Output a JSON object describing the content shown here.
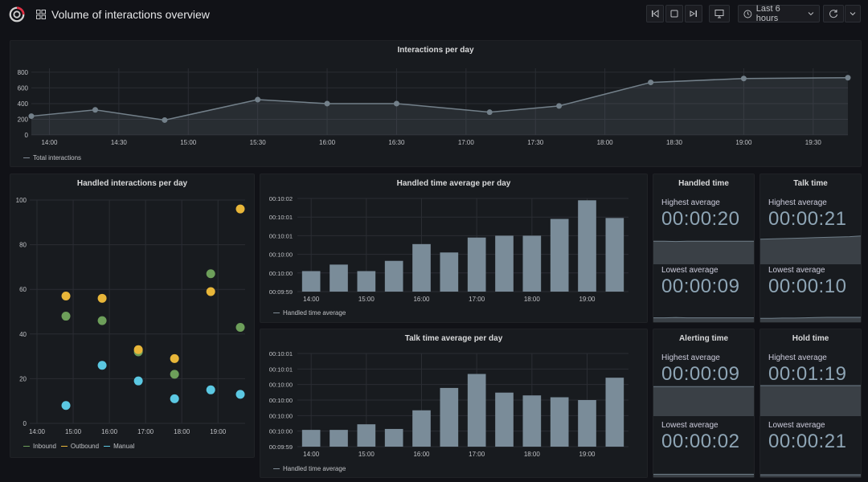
{
  "header": {
    "title": "Volume of interactions overview",
    "time_range": "Last 6 hours"
  },
  "colors": {
    "line": "#73808a",
    "bars": "#7a8c99",
    "inbound": "#6d9f5a",
    "outbound": "#e8b639",
    "manual": "#5bc8e2",
    "stat_value": "#8ea5b5"
  },
  "panels": {
    "interactions_per_day": {
      "title": "Interactions per day",
      "legend": "Total interactions"
    },
    "handled_interactions": {
      "title": "Handled interactions per day",
      "legend": [
        "Inbound",
        "Outbound",
        "Manual"
      ]
    },
    "handled_time_avg": {
      "title": "Handled time average per day",
      "legend": "Handled time average"
    },
    "talk_time_avg": {
      "title": "Talk time average per day",
      "legend": "Handled time average"
    },
    "handled_time": {
      "title": "Handled time",
      "highest_label": "Highest average",
      "highest_value": "00:00:20",
      "lowest_label": "Lowest average",
      "lowest_value": "00:00:09"
    },
    "talk_time": {
      "title": "Talk time",
      "highest_label": "Highest average",
      "highest_value": "00:00:21",
      "lowest_label": "Lowest average",
      "lowest_value": "00:00:10"
    },
    "alerting_time": {
      "title": "Alerting time",
      "highest_label": "Highest average",
      "highest_value": "00:00:09",
      "lowest_label": "Lowest average",
      "lowest_value": "00:00:02"
    },
    "hold_time": {
      "title": "Hold time",
      "highest_label": "Highest average",
      "highest_value": "00:01:19",
      "lowest_label": "Lowest average",
      "lowest_value": "00:00:21"
    }
  },
  "chart_data": [
    {
      "id": "interactions",
      "type": "line",
      "title": "Interactions per day",
      "x_ticks": [
        "14:00",
        "14:30",
        "15:00",
        "15:30",
        "16:00",
        "16:30",
        "17:00",
        "17:30",
        "18:00",
        "18:30",
        "19:00",
        "19:30"
      ],
      "x_range": [
        13.87,
        19.75
      ],
      "x": [
        13.87,
        14.33,
        14.83,
        15.5,
        16.0,
        16.5,
        17.17,
        17.67,
        18.33,
        19.0,
        19.75
      ],
      "y_ticks": [
        "0",
        "200",
        "400",
        "600",
        "800"
      ],
      "ylim": [
        0,
        850
      ],
      "series": [
        {
          "name": "Total interactions",
          "values": [
            240,
            320,
            190,
            450,
            400,
            400,
            290,
            370,
            670,
            720,
            730
          ]
        }
      ]
    },
    {
      "id": "handled_scatter",
      "type": "scatter",
      "title": "Handled interactions per day",
      "x_ticks": [
        "14:00",
        "15:00",
        "16:00",
        "17:00",
        "18:00",
        "19:00"
      ],
      "xlim": [
        13.8,
        19.75
      ],
      "y_ticks": [
        "0",
        "20",
        "40",
        "60",
        "80",
        "100"
      ],
      "ylim": [
        0,
        100
      ],
      "series": [
        {
          "name": "Inbound",
          "x": [
            14.8,
            15.8,
            16.8,
            17.8,
            18.8,
            19.75
          ],
          "values": [
            48,
            46,
            32,
            22,
            67,
            43
          ]
        },
        {
          "name": "Outbound",
          "x": [
            14.8,
            15.8,
            16.8,
            17.8,
            18.8,
            19.75
          ],
          "values": [
            57,
            56,
            33,
            29,
            59,
            96
          ]
        },
        {
          "name": "Manual",
          "x": [
            14.8,
            15.8,
            16.8,
            17.8,
            18.8,
            19.75
          ],
          "values": [
            8,
            26,
            19,
            11,
            15,
            13
          ]
        }
      ]
    },
    {
      "id": "handled_bars",
      "type": "bar",
      "title": "Handled time average per day",
      "x_ticks": [
        "14:00",
        "15:00",
        "16:00",
        "17:00",
        "18:00",
        "19:00"
      ],
      "y_ticks": [
        "00:10:02",
        "00:10:01",
        "00:10:01",
        "00:10:00",
        "00:10:00",
        "00:09:59"
      ],
      "ylim": [
        0,
        100
      ],
      "values": [
        22,
        29,
        22,
        33,
        51,
        42,
        58,
        60,
        60,
        78,
        98,
        79
      ]
    },
    {
      "id": "talk_bars",
      "type": "bar",
      "title": "Talk time average per day",
      "x_ticks": [
        "14:00",
        "15:00",
        "16:00",
        "17:00",
        "18:00",
        "19:00"
      ],
      "y_ticks": [
        "00:10:01",
        "00:10:01",
        "00:10:00",
        "00:10:00",
        "00:10:00",
        "00:10:00",
        "00:09:59"
      ],
      "ylim": [
        0,
        100
      ],
      "values": [
        18,
        18,
        24,
        19,
        39,
        63,
        78,
        58,
        55,
        53,
        50,
        74
      ]
    },
    {
      "id": "spark_handled_high",
      "type": "area",
      "values": [
        0.72,
        0.72,
        0.71,
        0.72,
        0.72,
        0.72,
        0.72,
        0.72,
        0.72,
        0.72
      ]
    },
    {
      "id": "spark_handled_low",
      "type": "area",
      "values": [
        0.18,
        0.18,
        0.19,
        0.18,
        0.18,
        0.18,
        0.18,
        0.18,
        0.18,
        0.18
      ]
    },
    {
      "id": "spark_talk_high",
      "type": "area",
      "values": [
        0.78,
        0.79,
        0.8,
        0.81,
        0.82,
        0.83,
        0.84,
        0.85,
        0.86,
        0.88
      ]
    },
    {
      "id": "spark_talk_low",
      "type": "area",
      "values": [
        0.16,
        0.16,
        0.17,
        0.17,
        0.18,
        0.19,
        0.2,
        0.2,
        0.2,
        0.2
      ]
    },
    {
      "id": "spark_alert_high",
      "type": "area",
      "values": [
        0.92,
        0.92,
        0.92,
        0.92,
        0.92,
        0.92,
        0.92,
        0.92,
        0.92,
        0.92
      ]
    },
    {
      "id": "spark_alert_low",
      "type": "area",
      "values": [
        0.12,
        0.12,
        0.12,
        0.12,
        0.12,
        0.12,
        0.12,
        0.12,
        0.12,
        0.12
      ]
    },
    {
      "id": "spark_hold_high",
      "type": "area",
      "values": [
        0.95,
        0.95,
        0.95,
        0.95,
        0.95,
        0.95,
        0.95,
        0.95,
        0.95,
        0.95
      ]
    },
    {
      "id": "spark_hold_low",
      "type": "area",
      "values": [
        0.1,
        0.1,
        0.1,
        0.1,
        0.1,
        0.1,
        0.1,
        0.1,
        0.1,
        0.1
      ]
    }
  ]
}
